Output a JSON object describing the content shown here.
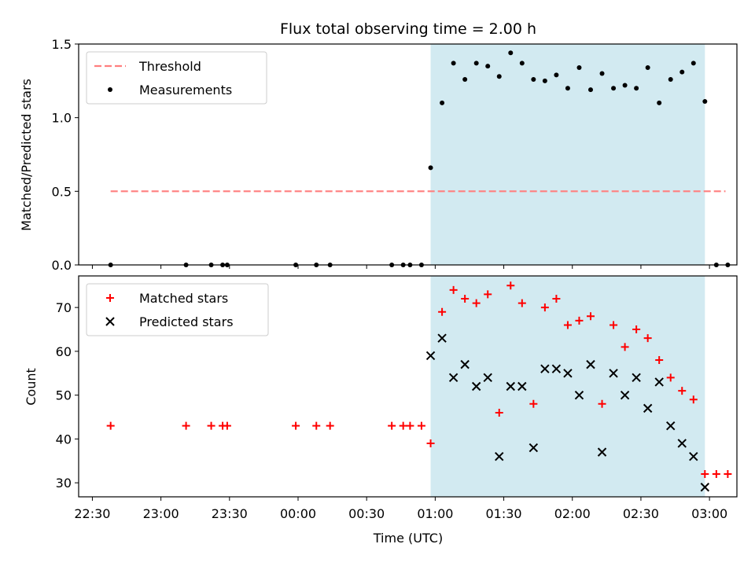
{
  "chart_data": [
    {
      "type": "scatter",
      "title": "Flux total observing time = 2.00 h",
      "xlabel": "",
      "ylabel": "Matched/Predicted stars",
      "xlim": [
        "22:24",
        "03:12"
      ],
      "ylim": [
        0,
        1.5
      ],
      "yticks": [
        0.0,
        0.5,
        1.0,
        1.5
      ],
      "ytick_labels": [
        "0.0",
        "0.5",
        "1.0",
        "1.5"
      ],
      "xticks": [
        "22:30",
        "23:00",
        "23:30",
        "00:00",
        "00:30",
        "01:00",
        "01:30",
        "02:00",
        "02:30",
        "03:00"
      ],
      "xtick_labels_shown": false,
      "shaded_interval": {
        "start": "00:58",
        "end": "02:58",
        "color": "#add8e6"
      },
      "legend": {
        "placement": "upper-left",
        "entries": [
          "Threshold",
          "Measurements"
        ]
      },
      "series": [
        {
          "name": "Threshold",
          "style": "dashed-line",
          "color": "#ff7f7f",
          "x": [
            "22:38",
            "03:07"
          ],
          "y": [
            0.5,
            0.5
          ]
        },
        {
          "name": "Measurements",
          "style": "dot",
          "color": "#000000",
          "x": [
            "22:38",
            "23:11",
            "23:22",
            "23:27",
            "23:29",
            "23:59",
            "00:08",
            "00:14",
            "00:41",
            "00:46",
            "00:49",
            "00:54",
            "00:58",
            "01:03",
            "01:08",
            "01:13",
            "01:18",
            "01:23",
            "01:28",
            "01:33",
            "01:38",
            "01:43",
            "01:48",
            "01:53",
            "01:58",
            "02:03",
            "02:08",
            "02:13",
            "02:18",
            "02:23",
            "02:28",
            "02:33",
            "02:38",
            "02:43",
            "02:48",
            "02:53",
            "02:58",
            "03:03",
            "03:08"
          ],
          "y": [
            0,
            0,
            0,
            0,
            0,
            0,
            0,
            0,
            0,
            0,
            0,
            0,
            0.66,
            1.1,
            1.37,
            1.26,
            1.37,
            1.35,
            1.28,
            1.44,
            1.37,
            1.26,
            1.25,
            1.29,
            1.2,
            1.34,
            1.19,
            1.3,
            1.2,
            1.22,
            1.2,
            1.34,
            1.1,
            1.26,
            1.31,
            1.37,
            1.11,
            0,
            0
          ]
        }
      ]
    },
    {
      "type": "scatter",
      "title": "",
      "xlabel": "Time (UTC)",
      "ylabel": "Count",
      "xlim": [
        "22:24",
        "03:12"
      ],
      "ylim": [
        26.8,
        77.2
      ],
      "yticks": [
        30,
        40,
        50,
        60,
        70
      ],
      "ytick_labels": [
        "30",
        "40",
        "50",
        "60",
        "70"
      ],
      "xticks": [
        "22:30",
        "23:00",
        "23:30",
        "00:00",
        "00:30",
        "01:00",
        "01:30",
        "02:00",
        "02:30",
        "03:00"
      ],
      "xtick_labels": [
        "22:30",
        "23:00",
        "23:30",
        "00:00",
        "00:30",
        "01:00",
        "01:30",
        "02:00",
        "02:30",
        "03:00"
      ],
      "shaded_interval": {
        "start": "00:58",
        "end": "02:58",
        "color": "#add8e6"
      },
      "legend": {
        "placement": "upper-left",
        "entries": [
          "Matched stars",
          "Predicted stars"
        ]
      },
      "series": [
        {
          "name": "Matched stars",
          "marker": "plus",
          "color": "#ff0000",
          "x": [
            "22:38",
            "23:11",
            "23:22",
            "23:27",
            "23:29",
            "23:59",
            "00:08",
            "00:14",
            "00:41",
            "00:46",
            "00:49",
            "00:54",
            "00:58",
            "01:03",
            "01:08",
            "01:13",
            "01:18",
            "01:23",
            "01:28",
            "01:33",
            "01:38",
            "01:43",
            "01:48",
            "01:53",
            "01:58",
            "02:03",
            "02:08",
            "02:13",
            "02:18",
            "02:23",
            "02:28",
            "02:33",
            "02:38",
            "02:43",
            "02:48",
            "02:53",
            "02:58",
            "03:03",
            "03:08"
          ],
          "y": [
            43,
            43,
            43,
            43,
            43,
            43,
            43,
            43,
            43,
            43,
            43,
            43,
            39,
            69,
            74,
            72,
            71,
            73,
            46,
            75,
            71,
            48,
            70,
            72,
            66,
            67,
            68,
            48,
            66,
            61,
            65,
            63,
            58,
            54,
            51,
            49,
            32,
            32,
            32
          ]
        },
        {
          "name": "Predicted stars",
          "marker": "x",
          "color": "#000000",
          "x": [
            "00:58",
            "01:03",
            "01:08",
            "01:13",
            "01:18",
            "01:23",
            "01:28",
            "01:33",
            "01:38",
            "01:43",
            "01:48",
            "01:53",
            "01:58",
            "02:03",
            "02:08",
            "02:13",
            "02:18",
            "02:23",
            "02:28",
            "02:33",
            "02:38",
            "02:43",
            "02:48",
            "02:53",
            "02:58"
          ],
          "y": [
            59,
            63,
            54,
            57,
            52,
            54,
            36,
            52,
            52,
            38,
            56,
            56,
            55,
            50,
            57,
            37,
            55,
            50,
            54,
            47,
            53,
            43,
            39,
            36,
            29
          ]
        }
      ]
    }
  ]
}
